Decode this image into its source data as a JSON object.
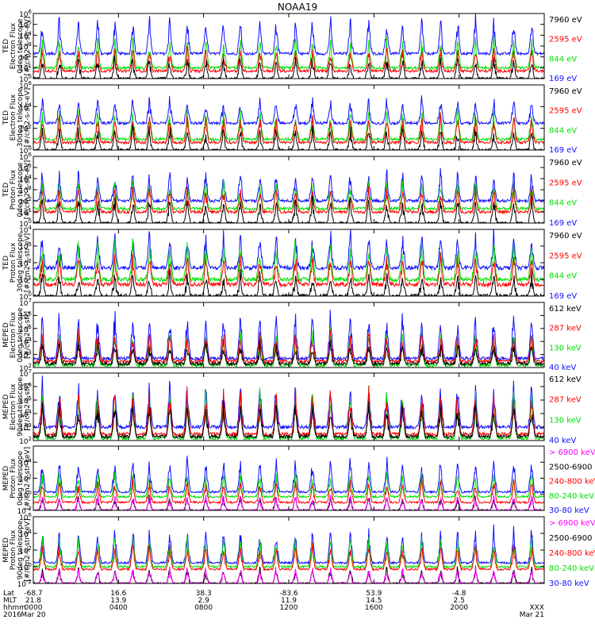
{
  "title": "NOAA19",
  "colors": {
    "blue": "#1010ff",
    "red": "#ff0000",
    "green": "#00e000",
    "black": "#000000",
    "magenta": "#ff00ff"
  },
  "chart_data": [
    {
      "type": "line",
      "ylabel": [
        "TED",
        "Electron Flux",
        "0deg telescope",
        "[#/cm2-s-str-eV]"
      ],
      "yscale": "log",
      "ylim": [
        1,
        1000000
      ],
      "ytick_labels": [
        "10^6",
        "10^5",
        "10^4",
        "10^3",
        "10^2",
        "10^1",
        "10^0"
      ],
      "legend_placement": "right",
      "series": [
        {
          "name": "7960 eV",
          "color": "#000000",
          "base": 1,
          "peak": 150
        },
        {
          "name": "2595 eV",
          "color": "#ff0000",
          "base": 5,
          "peak": 1000
        },
        {
          "name": "844 eV",
          "color": "#00e000",
          "base": 10,
          "peak": 10000
        },
        {
          "name": "169 eV",
          "color": "#1010ff",
          "base": 200,
          "peak": 1000000
        }
      ]
    },
    {
      "type": "line",
      "ylabel": [
        "TED",
        "Electron Flux",
        "30deg telescope",
        "[#/cm2-s-str-eV]"
      ],
      "yscale": "log",
      "ylim": [
        1,
        1000000
      ],
      "ytick_labels": [
        "10^6",
        "10^4",
        "10^2",
        "10^0"
      ],
      "legend_placement": "right",
      "series": [
        {
          "name": "7960 eV",
          "color": "#000000",
          "base": 1,
          "peak": 150
        },
        {
          "name": "2595 eV",
          "color": "#ff0000",
          "base": 5,
          "peak": 3000
        },
        {
          "name": "844 eV",
          "color": "#00e000",
          "base": 10,
          "peak": 10000
        },
        {
          "name": "169 eV",
          "color": "#1010ff",
          "base": 300,
          "peak": 100000
        }
      ]
    },
    {
      "type": "line",
      "ylabel": [
        "TED",
        "Proton Flux",
        "0deg telescope",
        "[#/cm2-s-str-eV]"
      ],
      "yscale": "log",
      "ylim": [
        1,
        1000000
      ],
      "ytick_labels": [
        "10^6",
        "10^5",
        "10^4",
        "10^3",
        "10^2",
        "10^1",
        "10^0"
      ],
      "legend_placement": "right",
      "series": [
        {
          "name": "7960 eV",
          "color": "#000000",
          "base": 1,
          "peak": 300
        },
        {
          "name": "2595 eV",
          "color": "#ff0000",
          "base": 10,
          "peak": 3000
        },
        {
          "name": "844 eV",
          "color": "#00e000",
          "base": 20,
          "peak": 10000
        },
        {
          "name": "169 eV",
          "color": "#1010ff",
          "base": 100,
          "peak": 100000
        }
      ]
    },
    {
      "type": "line",
      "ylabel": [
        "TED",
        "Proton Flux",
        "30deg telescope",
        "[#/cm2-s-str-eV]"
      ],
      "yscale": "log",
      "ylim": [
        1,
        10000
      ],
      "ytick_labels": [
        "10^4",
        "10^3",
        "10^2",
        "10^1",
        "10^0"
      ],
      "legend_placement": "right",
      "series": [
        {
          "name": "7960 eV",
          "color": "#000000",
          "base": 1,
          "peak": 30
        },
        {
          "name": "2595 eV",
          "color": "#ff0000",
          "base": 5,
          "peak": 500
        },
        {
          "name": "844 eV",
          "color": "#00e000",
          "base": 10,
          "peak": 3000
        },
        {
          "name": "169 eV",
          "color": "#1010ff",
          "base": 50,
          "peak": 10000
        }
      ]
    },
    {
      "type": "line",
      "ylabel": [
        "MEPED",
        "Electron Flux",
        "0deg telescope",
        "[#/cm2-s-str]"
      ],
      "yscale": "log",
      "ylim": [
        100,
        10000000
      ],
      "ytick_labels": [
        "10^7",
        "10^6",
        "10^5",
        "10^4",
        "10^3",
        "10^2"
      ],
      "legend_placement": "right",
      "series": [
        {
          "name": "612 keV",
          "color": "#000000",
          "base": 200,
          "peak": 10000
        },
        {
          "name": "287 keV",
          "color": "#ff0000",
          "base": 300,
          "peak": 100000
        },
        {
          "name": "130 keV",
          "color": "#00e000",
          "base": 150,
          "peak": 100000
        },
        {
          "name": "40 keV",
          "color": "#1010ff",
          "base": 500,
          "peak": 5000000
        }
      ]
    },
    {
      "type": "line",
      "ylabel": [
        "MEPED",
        "Electron Flux",
        "90deg telescope",
        "[#/cm2-s-str]"
      ],
      "yscale": "log",
      "ylim": [
        100,
        10000000
      ],
      "ytick_labels": [
        "10^7",
        "10^6",
        "10^5",
        "10^4",
        "10^3",
        "10^2"
      ],
      "legend_placement": "right",
      "series": [
        {
          "name": "612 keV",
          "color": "#000000",
          "base": 200,
          "peak": 100000
        },
        {
          "name": "287 keV",
          "color": "#ff0000",
          "base": 300,
          "peak": 1000000
        },
        {
          "name": "130 keV",
          "color": "#00e000",
          "base": 150,
          "peak": 1000000
        },
        {
          "name": "40 keV",
          "color": "#1010ff",
          "base": 1000,
          "peak": 5000000
        }
      ]
    },
    {
      "type": "line",
      "ylabel": [
        "MEPED",
        "Proton Flux",
        "0deg telescope",
        "[#/cm2-s-str-keV]"
      ],
      "yscale": "log",
      "ylim": [
        0.01,
        1000000
      ],
      "ytick_labels": [
        "10^4",
        "10^2",
        "10^0",
        "10^-2"
      ],
      "legend_placement": "right",
      "series": [
        {
          "name": "> 6900 keV",
          "color": "#ff00ff",
          "base": 0.01,
          "peak": 1
        },
        {
          "name": "2500-6900",
          "color": "#000000",
          "base": 0.01,
          "peak": 1
        },
        {
          "name": "240-800 keV",
          "color": "#ff0000",
          "base": 0.1,
          "peak": 100
        },
        {
          "name": "80-240 keV",
          "color": "#00e000",
          "base": 0.5,
          "peak": 1000
        },
        {
          "name": "30-80 keV",
          "color": "#1010ff",
          "base": 2,
          "peak": 100000
        }
      ]
    },
    {
      "type": "line",
      "ylabel": [
        "MEPED",
        "Proton Flux",
        "90deg telescope",
        "[#/cm2-s-str-keV]"
      ],
      "yscale": "log",
      "ylim": [
        0.01,
        1000000
      ],
      "ytick_labels": [
        "10^6",
        "10^4",
        "10^2",
        "10^0",
        "10^-2"
      ],
      "legend_placement": "right",
      "series": [
        {
          "name": "> 6900 keV",
          "color": "#ff00ff",
          "base": 0.01,
          "peak": 1
        },
        {
          "name": "2500-6900",
          "color": "#000000",
          "base": 0.01,
          "peak": 1
        },
        {
          "name": "240-800 keV",
          "color": "#ff0000",
          "base": 0.5,
          "peak": 1000
        },
        {
          "name": "80-240 keV",
          "color": "#00e000",
          "base": 1,
          "peak": 10000
        },
        {
          "name": "30-80 keV",
          "color": "#1010ff",
          "base": 3,
          "peak": 100000
        }
      ]
    }
  ],
  "x_axis": {
    "row_labels": [
      "Lat",
      "MLT",
      "hhmm",
      "2016"
    ],
    "ticks": [
      {
        "hours": 0,
        "values": [
          "-68.7",
          "21.8",
          "0000",
          "Mar 20"
        ]
      },
      {
        "hours": 4,
        "values": [
          "16.6",
          "13.9",
          "0400",
          ""
        ]
      },
      {
        "hours": 8,
        "values": [
          "38.3",
          "2.9",
          "0800",
          ""
        ]
      },
      {
        "hours": 12,
        "values": [
          "-83.6",
          "11.9",
          "1200",
          ""
        ]
      },
      {
        "hours": 16,
        "values": [
          "53.9",
          "14.5",
          "1600",
          ""
        ]
      },
      {
        "hours": 20,
        "values": [
          "-4.8",
          "2.5",
          "2000",
          ""
        ]
      },
      {
        "hours": 24,
        "values": [
          "",
          "",
          "XXX",
          "Mar 21"
        ]
      }
    ],
    "xlim_hours": [
      0,
      24
    ]
  }
}
